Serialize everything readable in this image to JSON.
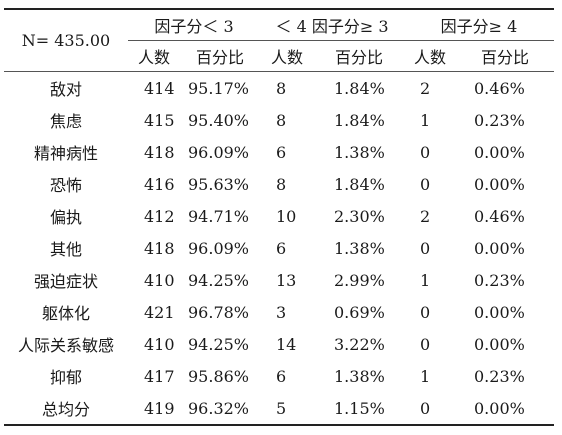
{
  "table": {
    "n_label": "N= 435.00",
    "groups": [
      "因子分＜ 3",
      "＜ 4 因子分≥ 3",
      "因子分≥ 4"
    ],
    "subheaders": [
      "人数",
      "百分比",
      "人数",
      "百分比",
      "人数",
      "百分比"
    ],
    "rows": [
      {
        "name": "敌对",
        "c1": "414",
        "p1": "95.17%",
        "c2": "8",
        "p2": "1.84%",
        "c3": "2",
        "p3": "0.46%"
      },
      {
        "name": "焦虑",
        "c1": "415",
        "p1": "95.40%",
        "c2": "8",
        "p2": "1.84%",
        "c3": "1",
        "p3": "0.23%"
      },
      {
        "name": "精神病性",
        "c1": "418",
        "p1": "96.09%",
        "c2": "6",
        "p2": "1.38%",
        "c3": "0",
        "p3": "0.00%"
      },
      {
        "name": "恐怖",
        "c1": "416",
        "p1": "95.63%",
        "c2": "8",
        "p2": "1.84%",
        "c3": "0",
        "p3": "0.00%"
      },
      {
        "name": "偏执",
        "c1": "412",
        "p1": "94.71%",
        "c2": "10",
        "p2": "2.30%",
        "c3": "2",
        "p3": "0.46%"
      },
      {
        "name": "其他",
        "c1": "418",
        "p1": "96.09%",
        "c2": "6",
        "p2": "1.38%",
        "c3": "0",
        "p3": "0.00%"
      },
      {
        "name": "强迫症状",
        "c1": "410",
        "p1": "94.25%",
        "c2": "13",
        "p2": "2.99%",
        "c3": "1",
        "p3": "0.23%"
      },
      {
        "name": "躯体化",
        "c1": "421",
        "p1": "96.78%",
        "c2": "3",
        "p2": "0.69%",
        "c3": "0",
        "p3": "0.00%"
      },
      {
        "name": "人际关系敏感",
        "c1": "410",
        "p1": "94.25%",
        "c2": "14",
        "p2": "3.22%",
        "c3": "0",
        "p3": "0.00%"
      },
      {
        "name": "抑郁",
        "c1": "417",
        "p1": "95.86%",
        "c2": "6",
        "p2": "1.38%",
        "c3": "1",
        "p3": "0.23%"
      },
      {
        "name": "总均分",
        "c1": "419",
        "p1": "96.32%",
        "c2": "5",
        "p2": "1.15%",
        "c3": "0",
        "p3": "0.00%"
      }
    ]
  }
}
